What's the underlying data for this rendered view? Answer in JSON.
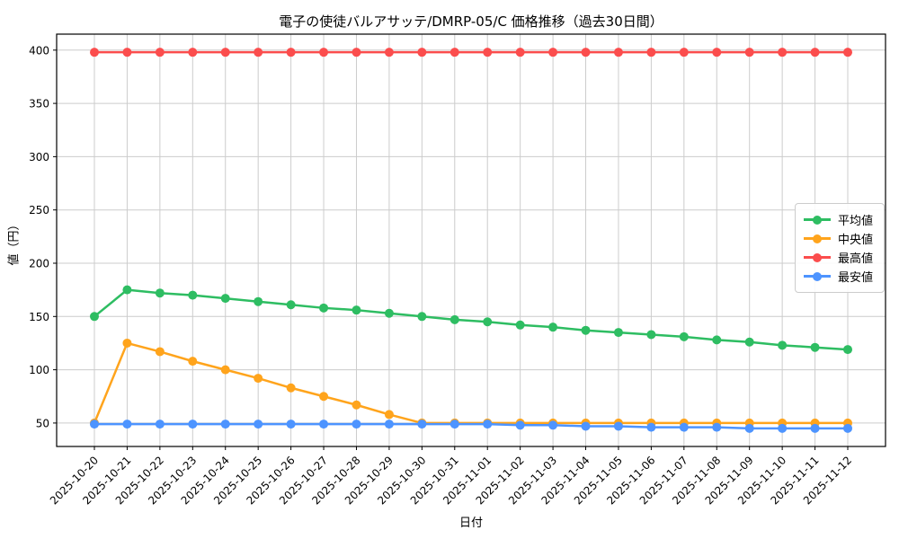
{
  "chart_data": {
    "type": "line",
    "title": "電子の使徒バルアサッテ/DMRP-05/C 価格推移（過去30日間）",
    "xlabel": "日付",
    "ylabel": "値（円）",
    "x": [
      "2025-10-20",
      "2025-10-21",
      "2025-10-22",
      "2025-10-23",
      "2025-10-24",
      "2025-10-25",
      "2025-10-26",
      "2025-10-27",
      "2025-10-28",
      "2025-10-29",
      "2025-10-30",
      "2025-10-31",
      "2025-11-01",
      "2025-11-02",
      "2025-11-03",
      "2025-11-04",
      "2025-11-05",
      "2025-11-06",
      "2025-11-07",
      "2025-11-08",
      "2025-11-09",
      "2025-11-10",
      "2025-11-11",
      "2025-11-12"
    ],
    "series": [
      {
        "name": "平均値",
        "color": "#2EBD62",
        "values": [
          150,
          175,
          172,
          170,
          167,
          164,
          161,
          158,
          156,
          153,
          150,
          147,
          145,
          142,
          140,
          137,
          135,
          133,
          131,
          128,
          126,
          123,
          121,
          119
        ]
      },
      {
        "name": "中央値",
        "color": "#FFA41C",
        "values": [
          50,
          125,
          117,
          108,
          100,
          92,
          83,
          75,
          67,
          58,
          50,
          50,
          50,
          50,
          50,
          50,
          50,
          50,
          50,
          50,
          50,
          50,
          50,
          50
        ]
      },
      {
        "name": "最高値",
        "color": "#FB4D4D",
        "values": [
          398,
          398,
          398,
          398,
          398,
          398,
          398,
          398,
          398,
          398,
          398,
          398,
          398,
          398,
          398,
          398,
          398,
          398,
          398,
          398,
          398,
          398,
          398,
          398
        ]
      },
      {
        "name": "最安値",
        "color": "#4D94FF",
        "values": [
          49,
          49,
          49,
          49,
          49,
          49,
          49,
          49,
          49,
          49,
          49,
          49,
          49,
          48,
          48,
          47,
          47,
          46,
          46,
          46,
          45,
          45,
          45,
          45
        ]
      }
    ],
    "ylim": [
      28,
      415
    ],
    "yticks": [
      50,
      100,
      150,
      200,
      250,
      300,
      350,
      400
    ],
    "grid": true,
    "grid_color": "#cccccc",
    "legend_position": "center right",
    "marker": "circle"
  }
}
